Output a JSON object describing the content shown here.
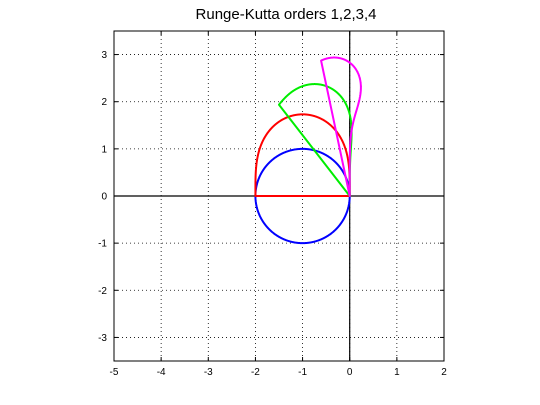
{
  "chart_data": {
    "type": "line",
    "title": "Runge-Kutta orders 1,2,3,4",
    "xlabel": "",
    "ylabel": "",
    "xlim": [
      -5,
      2
    ],
    "ylim": [
      -3.5,
      3.5
    ],
    "xticks": [
      -5,
      -4,
      -3,
      -2,
      -1,
      0,
      1,
      2
    ],
    "yticks": [
      -3,
      -2,
      -1,
      0,
      1,
      2,
      3
    ],
    "grid": true,
    "series": [
      {
        "order": 1,
        "color": "#0000ff"
      },
      {
        "order": 2,
        "color": "#ff0000"
      },
      {
        "order": 3,
        "color": "#00ee00"
      },
      {
        "order": 4,
        "color": "#ff00ff"
      }
    ]
  }
}
